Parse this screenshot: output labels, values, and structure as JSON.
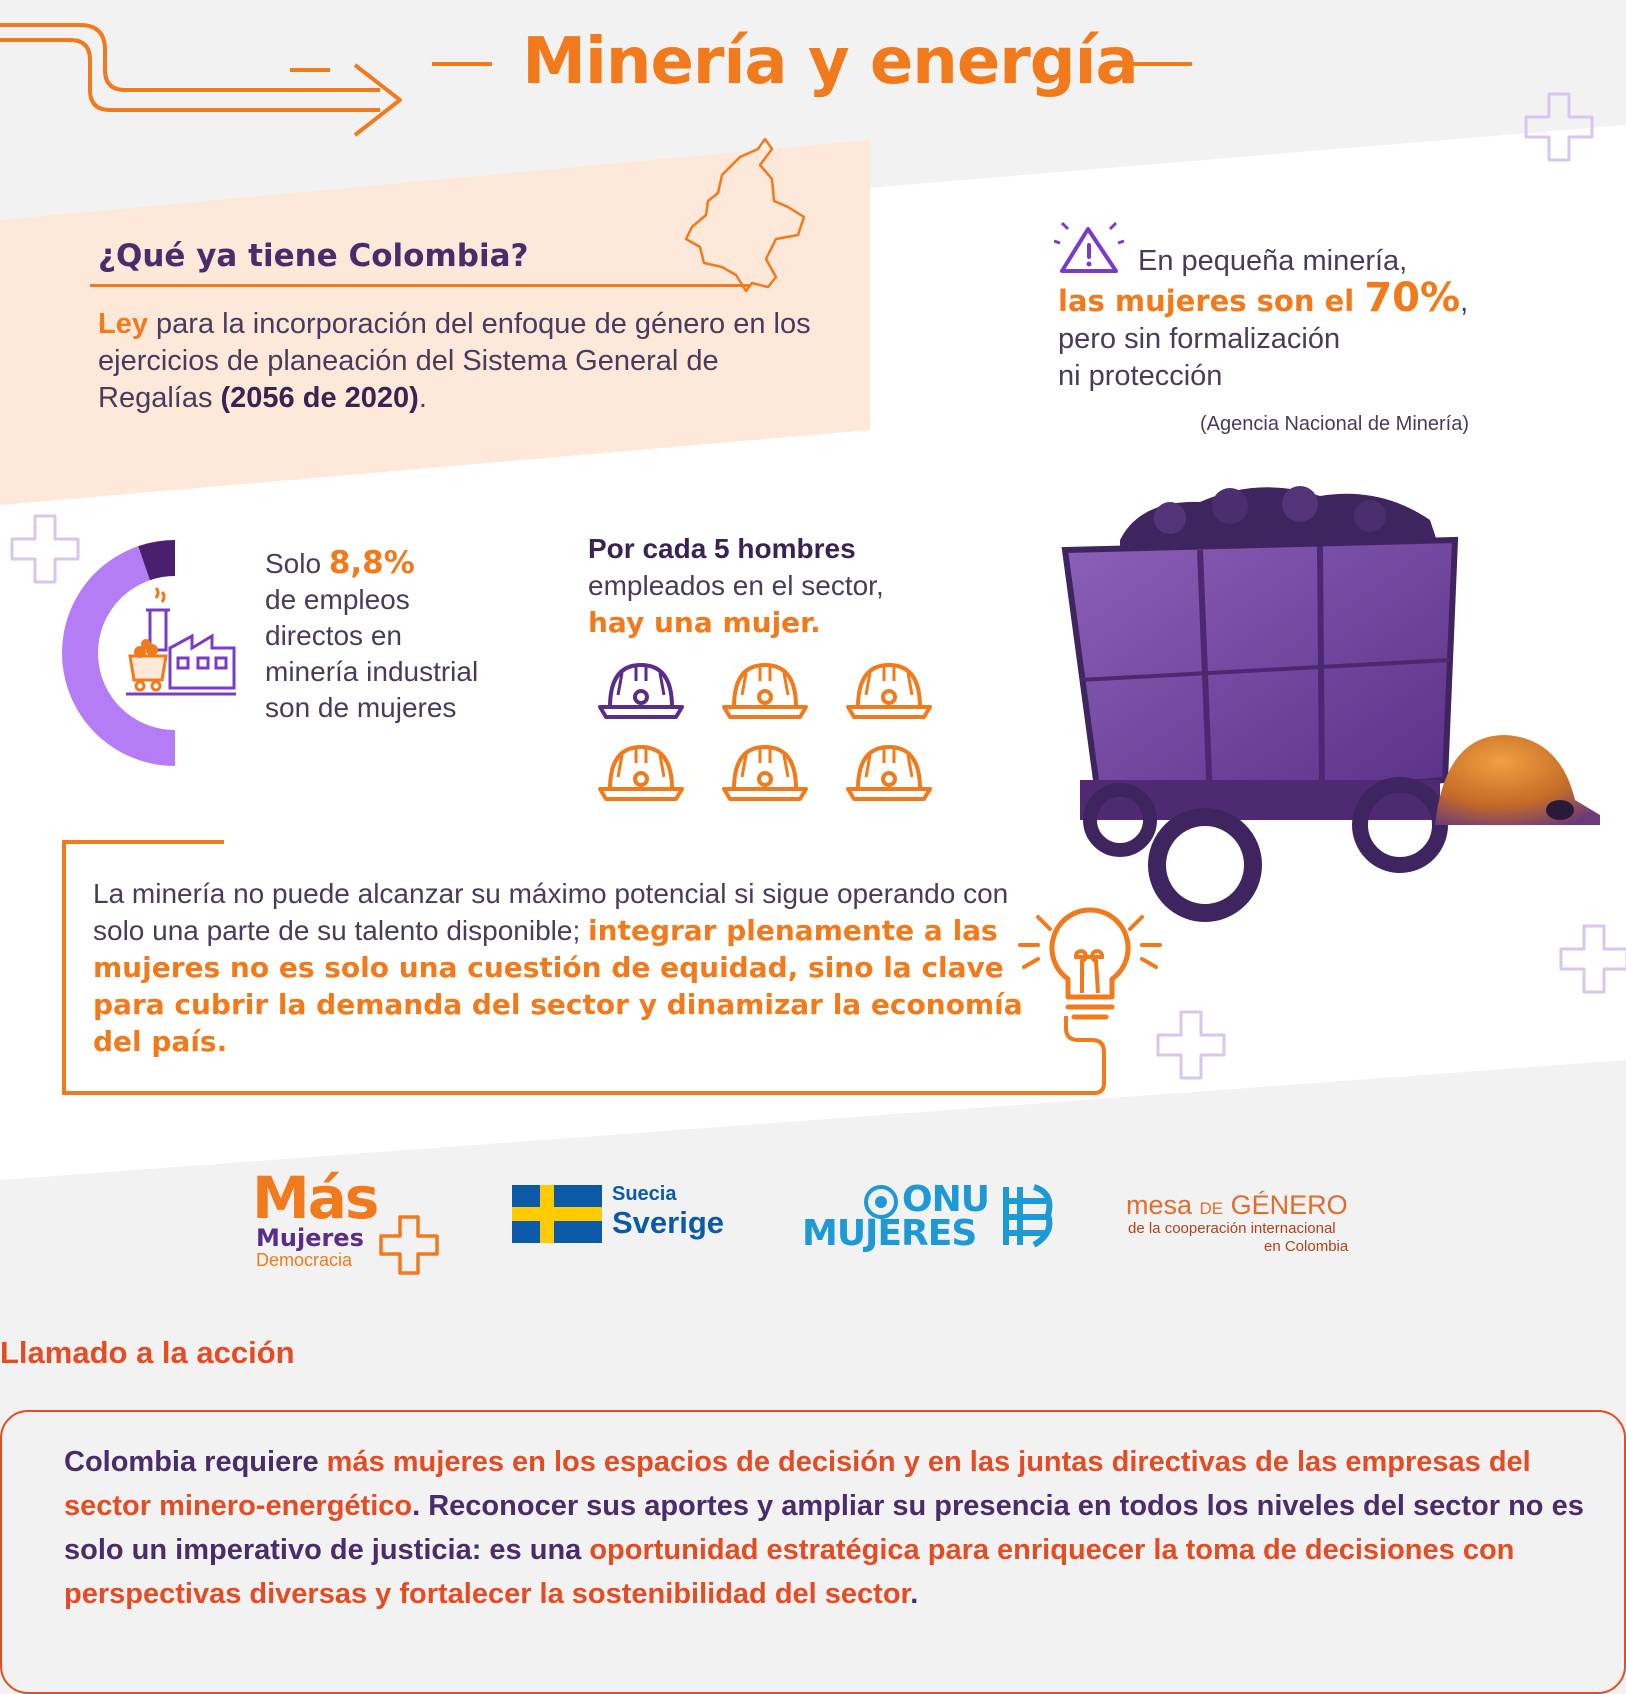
{
  "title": "Minería y energía",
  "colombia": {
    "heading": "¿Qué ya tiene Colombia?",
    "ley_bold": "Ley",
    "ley_text": " para la incorporación del enfoque de género en los ejercicios de planeación del Sistema General de Regalías ",
    "ley_number": "(2056 de 2020)",
    "ley_end": "."
  },
  "mineria_pequena": {
    "line1": "En pequeña minería,",
    "bold": "las mujeres son el ",
    "percent": "70%",
    "comma": ",",
    "line3": "pero sin formalización",
    "line4": "ni protección",
    "source": "(Agencia Nacional de Minería)"
  },
  "empleos": {
    "solo": "Solo ",
    "percent": "8,8%",
    "text": "de empleos directos en minería industrial son de mujeres",
    "donut_fraction": 0.088
  },
  "hombres": {
    "line1": "Por cada 5 hombres",
    "line2": "empleados en el sector,",
    "line3": "hay una mujer.",
    "women": 1,
    "men": 5
  },
  "quote": {
    "normal": "La minería no puede alcanzar su máximo potencial si sigue operando con solo una parte de su talento disponible; ",
    "bold": "integrar plenamente a las mujeres no es solo una cuestión de equidad, sino la clave para cubrir la demanda del sector y dinamizar la economía del país."
  },
  "logos": {
    "mas1": "Más",
    "mas2": "Mujeres",
    "mas3": "Democracia",
    "se1": "Suecia",
    "se2": "Sverige",
    "onu1": "ONU",
    "onu2": "MUJERES",
    "mesa_a": "mesa ",
    "mesa_de": "DE",
    "mesa_b": " GÉNERO",
    "mesa_line2": "de la cooperación internacional",
    "mesa_line3": "en Colombia"
  },
  "cta": {
    "heading": "Llamado a la acción",
    "p1": "Colombia requiere ",
    "o1": "más mujeres en los espacios de decisión y en las juntas directivas de las empresas  del sector minero-energético",
    "p2": ". Reconocer sus aportes y ampliar su presencia en todos los niveles del sector no es solo un imperativo de justicia: es una ",
    "o2": "oportunidad estratégica para enriquecer la toma de decisiones con perspectivas diversas y fortalecer la sostenibilidad del sector",
    "p3": "."
  },
  "colors": {
    "orange": "#f07a1c",
    "purple": "#4a2c6b",
    "violet": "#b57df5",
    "red_orange": "#e44c24"
  }
}
